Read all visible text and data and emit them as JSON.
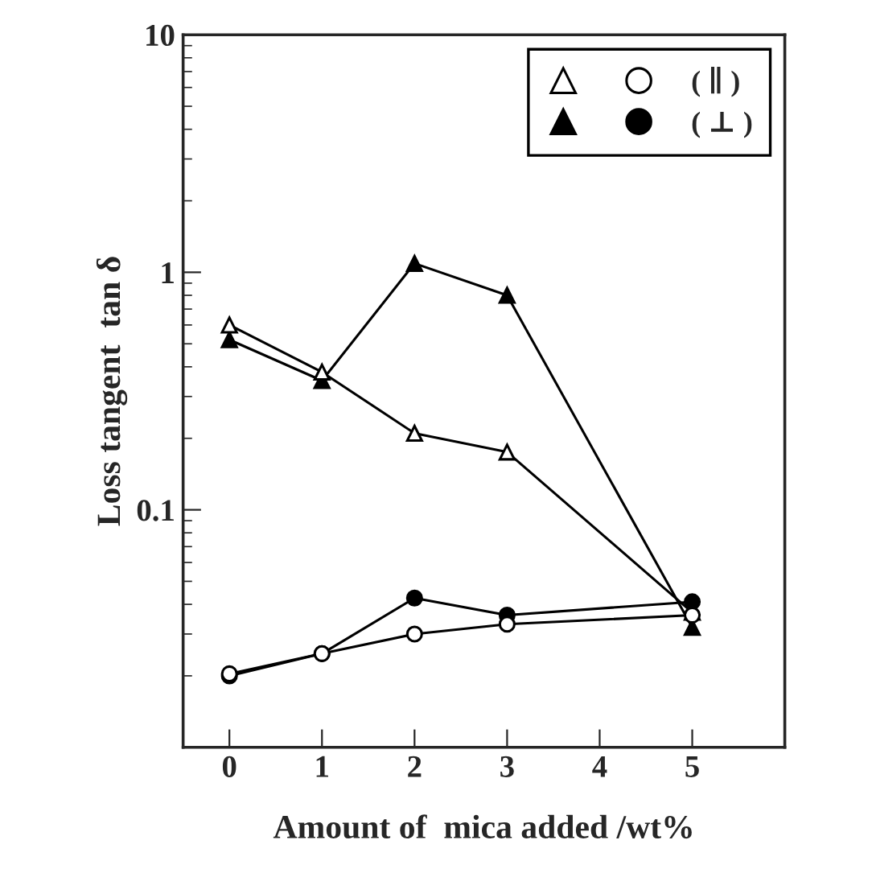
{
  "chart_data": {
    "type": "line",
    "xlabel": "Amount of  mica added /wt%",
    "ylabel": "Loss tangent  tan δ",
    "x": [
      0,
      1,
      2,
      3,
      5
    ],
    "series": [
      {
        "marker": "triangle",
        "color": "#ffffff",
        "values": [
          0.6,
          0.38,
          0.21,
          0.175,
          0.037
        ]
      },
      {
        "name": "( ∥ )",
        "marker": "circle",
        "color": "#ffffff",
        "values": [
          0.0204,
          0.0248,
          0.03,
          0.033,
          0.036
        ]
      },
      {
        "marker": "triangle",
        "color": "#000000",
        "values": [
          0.52,
          0.35,
          1.09,
          0.8,
          0.032
        ]
      },
      {
        "name": "( ⊥ )",
        "marker": "circle",
        "color": "#000000",
        "values": [
          0.02,
          0.0248,
          0.0425,
          0.036,
          0.041
        ]
      }
    ],
    "log": "y",
    "xlim": [
      -0.5,
      6
    ],
    "xticks": [
      0,
      1,
      2,
      3,
      4,
      5
    ],
    "ylim": [
      0.01,
      10
    ],
    "yticks": [
      {
        "value": 0.01,
        "label": null
      },
      0.1,
      1,
      10
    ],
    "grid": false,
    "legend": "top right",
    "line_style": "solid"
  }
}
